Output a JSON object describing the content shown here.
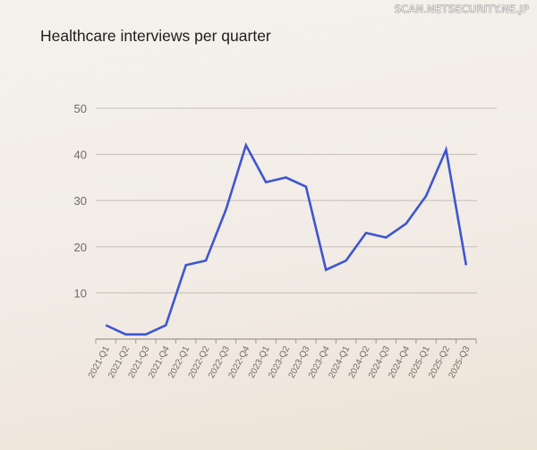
{
  "watermark": "SCAN.NETSECURITY.NE.JP",
  "colors": {
    "line": "#3d56d0",
    "grid": "#c9c2ba",
    "axis": "#9d978f",
    "tick_label": "#6e6a66",
    "title": "#1e1e1e"
  },
  "chart_data": {
    "type": "line",
    "title": "Healthcare interviews per quarter",
    "xlabel": "",
    "ylabel": "",
    "ylim": [
      0,
      50
    ],
    "yticks": [
      10,
      20,
      30,
      40,
      50
    ],
    "grid": true,
    "legend": null,
    "categories": [
      "2021-Q1",
      "2021-Q2",
      "2021-Q3",
      "2021-Q4",
      "2022-Q1",
      "2022-Q2",
      "2022-Q3",
      "2022-Q4",
      "2023-Q1",
      "2023-Q2",
      "2023-Q3",
      "2023-Q4",
      "2024-Q1",
      "2024-Q2",
      "2024-Q3",
      "2024-Q4",
      "2025-Q1",
      "2025-Q2",
      "2025-Q3"
    ],
    "series": [
      {
        "name": "Healthcare interviews",
        "values": [
          3,
          1,
          1,
          3,
          16,
          17,
          28,
          42,
          34,
          35,
          33,
          15,
          17,
          23,
          22,
          25,
          31,
          41,
          16
        ]
      }
    ]
  }
}
